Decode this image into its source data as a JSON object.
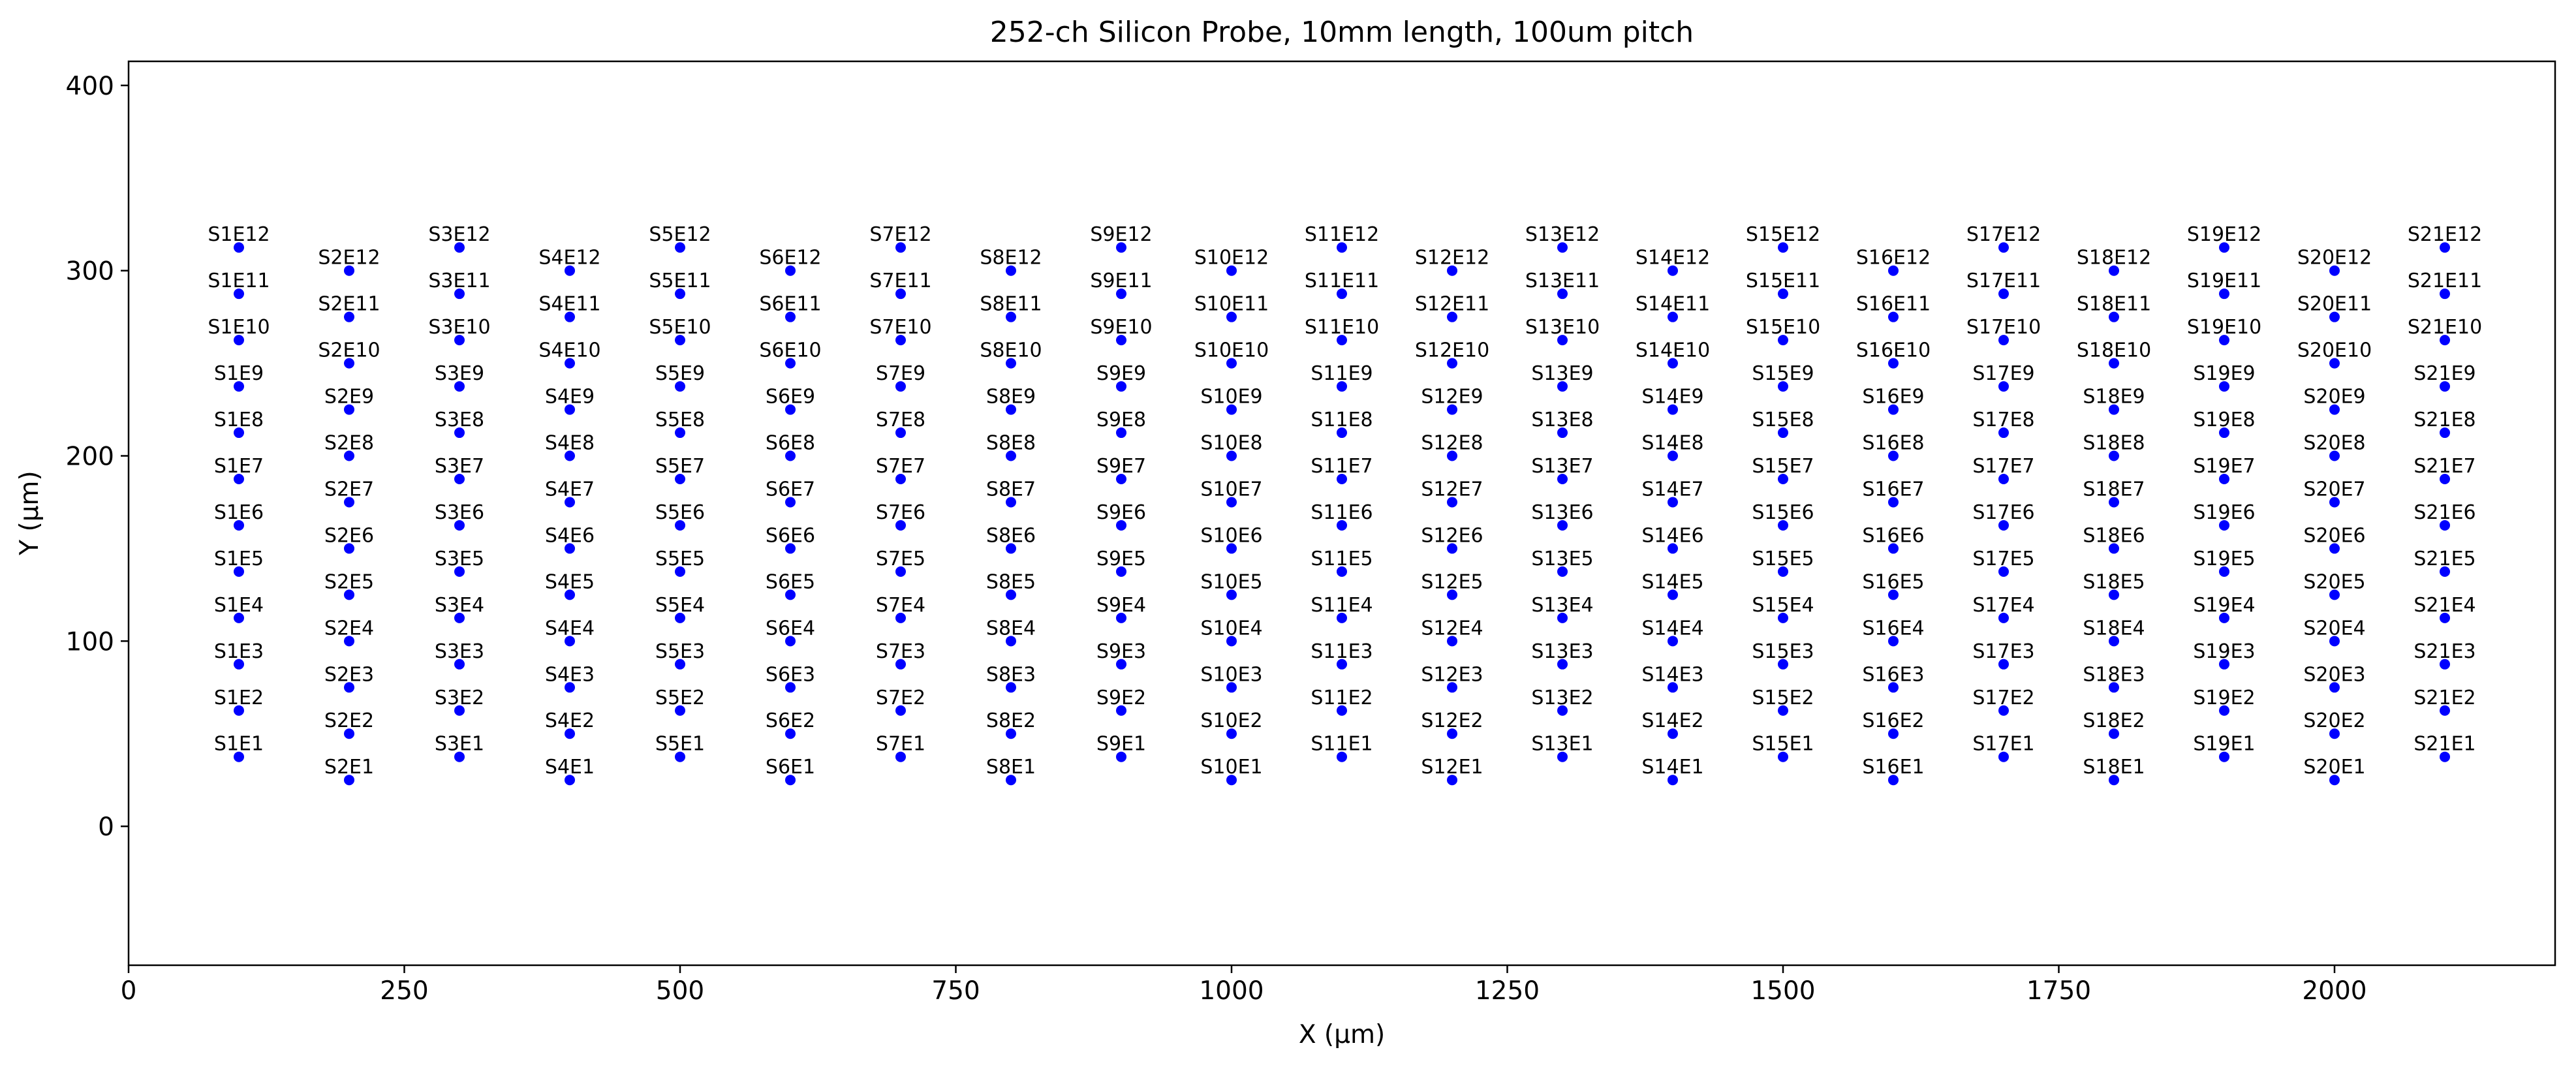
{
  "chart_data": {
    "type": "scatter",
    "title": "252-ch Silicon Probe, 10mm length, 100um pitch",
    "xlabel": "X (µm)",
    "ylabel": "Y (µm)",
    "xlim": [
      0,
      2200
    ],
    "ylim": [
      -75,
      413
    ],
    "xticks": [
      0,
      250,
      500,
      750,
      1000,
      1250,
      1500,
      1750,
      2000
    ],
    "yticks": [
      0,
      100,
      200,
      300,
      400
    ],
    "grid": false,
    "legend": "none",
    "marker_color": "#0000ff",
    "shanks": [
      {
        "name": "S1",
        "x": 100,
        "y_start": 37.5
      },
      {
        "name": "S2",
        "x": 200,
        "y_start": 25
      },
      {
        "name": "S3",
        "x": 300,
        "y_start": 37.5
      },
      {
        "name": "S4",
        "x": 400,
        "y_start": 25
      },
      {
        "name": "S5",
        "x": 500,
        "y_start": 37.5
      },
      {
        "name": "S6",
        "x": 600,
        "y_start": 25
      },
      {
        "name": "S7",
        "x": 700,
        "y_start": 37.5
      },
      {
        "name": "S8",
        "x": 800,
        "y_start": 25
      },
      {
        "name": "S9",
        "x": 900,
        "y_start": 37.5
      },
      {
        "name": "S10",
        "x": 1000,
        "y_start": 25
      },
      {
        "name": "S11",
        "x": 1100,
        "y_start": 37.5
      },
      {
        "name": "S12",
        "x": 1200,
        "y_start": 25
      },
      {
        "name": "S13",
        "x": 1300,
        "y_start": 37.5
      },
      {
        "name": "S14",
        "x": 1400,
        "y_start": 25
      },
      {
        "name": "S15",
        "x": 1500,
        "y_start": 37.5
      },
      {
        "name": "S16",
        "x": 1600,
        "y_start": 25
      },
      {
        "name": "S17",
        "x": 1700,
        "y_start": 37.5
      },
      {
        "name": "S18",
        "x": 1800,
        "y_start": 25
      },
      {
        "name": "S19",
        "x": 1900,
        "y_start": 37.5
      },
      {
        "name": "S20",
        "x": 2000,
        "y_start": 25
      },
      {
        "name": "S21",
        "x": 2100,
        "y_start": 37.5
      }
    ],
    "electrodes_per_shank": 12,
    "electrode_spacing": 25
  }
}
